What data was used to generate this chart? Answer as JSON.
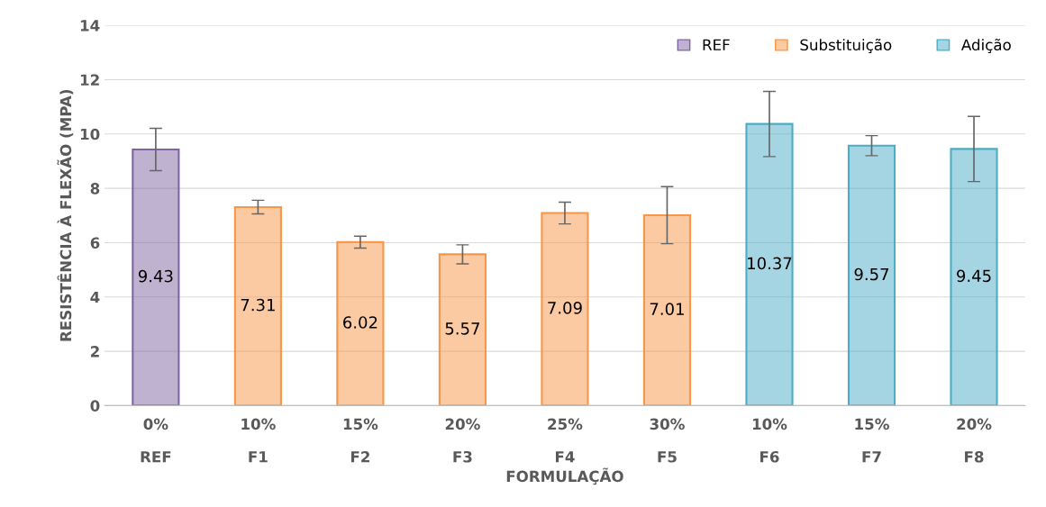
{
  "chart_data": {
    "type": "bar",
    "xlabel": "FORMULAÇÃO",
    "ylabel": "RESISTÊNCIA À FLEXÃO (MPA)",
    "categories": [
      "0%\nREF",
      "10%\nF1",
      "15%\nF2",
      "20%\nF3",
      "25%\nF4",
      "30%\nF5",
      "10%\nF6",
      "15%\nF7",
      "20%\nF8"
    ],
    "series": [
      {
        "name": "REF",
        "color": "#8064a2",
        "values": [
          9.43,
          null,
          null,
          null,
          null,
          null,
          null,
          null,
          null
        ],
        "errors": [
          0.78,
          null,
          null,
          null,
          null,
          null,
          null,
          null,
          null
        ]
      },
      {
        "name": "Substituição",
        "color": "#f79646",
        "values": [
          null,
          7.31,
          6.02,
          5.57,
          7.09,
          7.01,
          null,
          null,
          null
        ],
        "errors": [
          null,
          0.25,
          0.22,
          0.35,
          0.4,
          1.05,
          null,
          null,
          null
        ]
      },
      {
        "name": "Adição",
        "color": "#4bacc6",
        "values": [
          null,
          null,
          null,
          null,
          null,
          null,
          10.37,
          9.57,
          9.45
        ],
        "errors": [
          null,
          null,
          null,
          null,
          null,
          null,
          1.2,
          0.37,
          1.2
        ]
      }
    ],
    "ylim": [
      0,
      14
    ],
    "yticks": [
      0,
      2,
      4,
      6,
      8,
      10,
      12,
      14
    ],
    "grid": "y",
    "legend": "top right",
    "data_labels": true
  }
}
